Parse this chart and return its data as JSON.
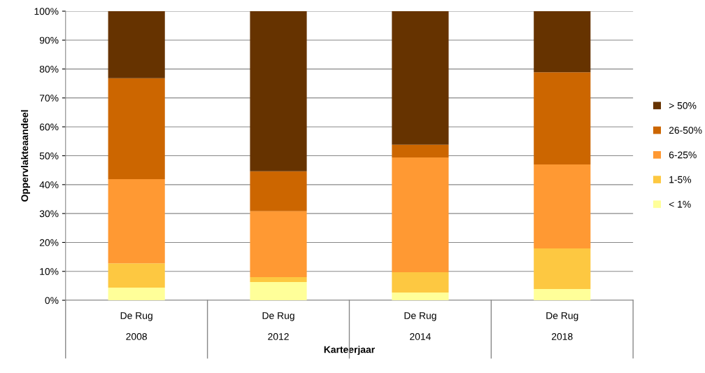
{
  "chart_data": {
    "type": "bar",
    "stacked": true,
    "xlabel": "Karteerjaar",
    "ylabel": "Oppervlakteaandeel",
    "categories": [
      "De Rug\n\n2008",
      "De Rug\n\n2012",
      "De Rug\n\n2014",
      "De Rug\n\n2018"
    ],
    "series": [
      {
        "name": "< 1%",
        "color": "#ffff99",
        "values": [
          4.4,
          6.3,
          2.7,
          3.9
        ]
      },
      {
        "name": "1-5%",
        "color": "#fdc841",
        "values": [
          8.4,
          1.7,
          7.0,
          14.0
        ]
      },
      {
        "name": "6-25%",
        "color": "#ff9933",
        "values": [
          29.1,
          22.8,
          39.7,
          29.1
        ]
      },
      {
        "name": "26-50%",
        "color": "#cc6600",
        "values": [
          34.9,
          13.8,
          4.4,
          31.9
        ]
      },
      {
        "name": "> 50%",
        "color": "#663300",
        "values": [
          23.2,
          55.4,
          46.2,
          21.1
        ]
      }
    ],
    "ylim": [
      0,
      100
    ],
    "yticks": [
      {
        "value": 0,
        "label": "0%"
      },
      {
        "value": 10,
        "label": "10%"
      },
      {
        "value": 20,
        "label": "20%"
      },
      {
        "value": 30,
        "label": "30%"
      },
      {
        "value": 40,
        "label": "40%"
      },
      {
        "value": 50,
        "label": "50%"
      },
      {
        "value": 60,
        "label": "60%"
      },
      {
        "value": 70,
        "label": "70%"
      },
      {
        "value": 80,
        "label": "80%"
      },
      {
        "value": 90,
        "label": "90%"
      },
      {
        "value": 100,
        "label": "100%"
      }
    ],
    "grid": "y",
    "legend": "right"
  }
}
